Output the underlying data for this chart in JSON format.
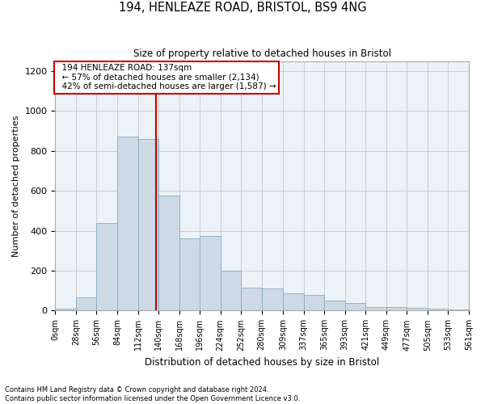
{
  "title1": "194, HENLEAZE ROAD, BRISTOL, BS9 4NG",
  "title2": "Size of property relative to detached houses in Bristol",
  "xlabel": "Distribution of detached houses by size in Bristol",
  "ylabel": "Number of detached properties",
  "footer1": "Contains HM Land Registry data © Crown copyright and database right 2024.",
  "footer2": "Contains public sector information licensed under the Open Government Licence v3.0.",
  "annotation_line1": "194 HENLEAZE ROAD: 137sqm",
  "annotation_line2": "← 57% of detached houses are smaller (2,134)",
  "annotation_line3": "42% of semi-detached houses are larger (1,587) →",
  "property_size": 137,
  "bin_edges": [
    0,
    28,
    56,
    84,
    112,
    140,
    168,
    196,
    224,
    252,
    280,
    309,
    337,
    365,
    393,
    421,
    449,
    477,
    505,
    533,
    561
  ],
  "bar_values": [
    10,
    65,
    440,
    870,
    860,
    575,
    360,
    375,
    200,
    115,
    110,
    85,
    80,
    50,
    38,
    20,
    18,
    15,
    10,
    5
  ],
  "bar_color": "#cdd9e5",
  "bar_edge_color": "#85adc8",
  "vline_color": "#cc0000",
  "grid_color": "#cccccc",
  "bg_color": "#edf2f7",
  "annotation_box_color": "#ffffff",
  "annotation_box_edge": "#cc0000",
  "ylim": [
    0,
    1250
  ],
  "yticks": [
    0,
    200,
    400,
    600,
    800,
    1000,
    1200
  ]
}
